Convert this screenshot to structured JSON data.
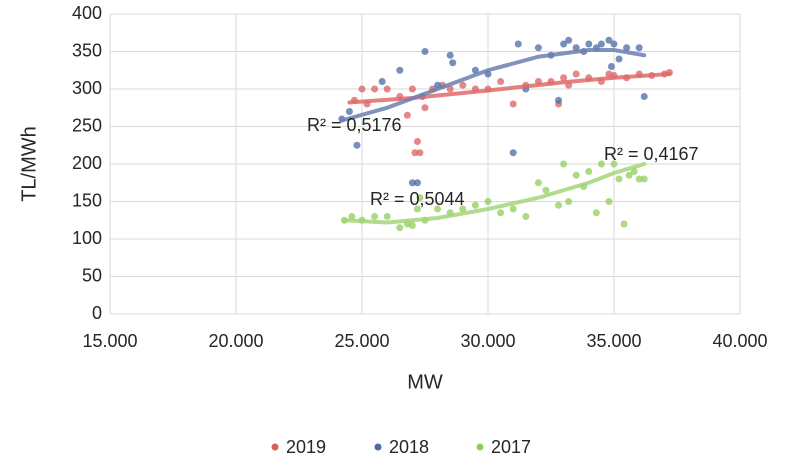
{
  "chart_data": {
    "type": "scatter",
    "xlabel": "MW",
    "ylabel": "TL/MWh",
    "xlim": [
      15000,
      40000
    ],
    "xticks": [
      {
        "value": 15000,
        "label": "15.000"
      },
      {
        "value": 20000,
        "label": "20.000"
      },
      {
        "value": 25000,
        "label": "25.000"
      },
      {
        "value": 30000,
        "label": "30.000"
      },
      {
        "value": 35000,
        "label": "35.000"
      },
      {
        "value": 40000,
        "label": "40.000"
      }
    ],
    "ylim": [
      0,
      400
    ],
    "yticks": [
      0,
      50,
      100,
      150,
      200,
      250,
      300,
      350,
      400
    ],
    "grid": true,
    "legend": "bottom",
    "annotations": [
      "R² = 0,5176",
      "R² = 0,4167",
      "R² = 0,5044"
    ],
    "series": [
      {
        "name": "2019",
        "color": "#d95f5f",
        "x": [
          24700,
          25000,
          25200,
          25500,
          26000,
          26500,
          27000,
          27200,
          27300,
          27500,
          27800,
          28200,
          28500,
          29000,
          29500,
          30000,
          30500,
          31000,
          31500,
          32000,
          32500,
          32800,
          33000,
          33500,
          34000,
          34500,
          35000,
          35500,
          36000,
          36500,
          37000,
          37200,
          27100,
          26800,
          33200,
          34800
        ],
        "values": [
          285,
          300,
          280,
          300,
          300,
          290,
          300,
          230,
          215,
          275,
          300,
          305,
          300,
          305,
          300,
          300,
          310,
          280,
          305,
          310,
          310,
          280,
          315,
          320,
          315,
          310,
          318,
          315,
          320,
          318,
          320,
          322,
          215,
          265,
          305,
          320
        ],
        "trendline": {
          "color": "#e06a6a",
          "x": [
            24500,
            27000,
            30000,
            33000,
            35000,
            37200
          ],
          "values": [
            282,
            288,
            298,
            309,
            315,
            320
          ]
        }
      },
      {
        "name": "2018",
        "color": "#4a6aa5",
        "x": [
          24200,
          24500,
          24800,
          25800,
          26500,
          27000,
          27200,
          27400,
          27500,
          28000,
          28500,
          28600,
          29500,
          30000,
          31000,
          31200,
          31500,
          32000,
          32500,
          32800,
          33000,
          33200,
          33500,
          34000,
          34300,
          34500,
          34800,
          35000,
          35200,
          35500,
          36000,
          36200,
          33800,
          34900
        ],
        "values": [
          260,
          270,
          225,
          310,
          325,
          175,
          175,
          290,
          350,
          305,
          345,
          335,
          325,
          320,
          215,
          360,
          300,
          355,
          345,
          285,
          360,
          365,
          355,
          360,
          355,
          360,
          365,
          360,
          340,
          355,
          355,
          290,
          350,
          330
        ],
        "trendline": {
          "color": "#6b7fb0",
          "x": [
            24200,
            26000,
            28000,
            30000,
            32000,
            34000,
            35000,
            36200
          ],
          "values": [
            258,
            275,
            300,
            325,
            343,
            352,
            352,
            345
          ]
        }
      },
      {
        "name": "2017",
        "color": "#8fce5a",
        "x": [
          24300,
          24600,
          25000,
          25500,
          26000,
          26500,
          26800,
          27000,
          27200,
          27500,
          28000,
          28500,
          29000,
          29500,
          30000,
          30500,
          31000,
          31500,
          32000,
          32300,
          32800,
          33000,
          33200,
          33500,
          33800,
          34000,
          34300,
          34500,
          34800,
          35000,
          35200,
          35400,
          35600,
          35800,
          36000,
          36200,
          27300
        ],
        "values": [
          125,
          130,
          125,
          130,
          130,
          115,
          120,
          118,
          140,
          125,
          140,
          135,
          140,
          145,
          150,
          135,
          140,
          130,
          175,
          165,
          145,
          200,
          150,
          185,
          170,
          190,
          135,
          200,
          150,
          200,
          180,
          120,
          185,
          190,
          180,
          180,
          155
        ],
        "trendline": {
          "color": "#a5d57a",
          "x": [
            24300,
            26000,
            28000,
            30000,
            32000,
            34000,
            35000,
            36200
          ],
          "values": [
            125,
            122,
            128,
            140,
            155,
            175,
            188,
            200
          ]
        }
      }
    ]
  }
}
